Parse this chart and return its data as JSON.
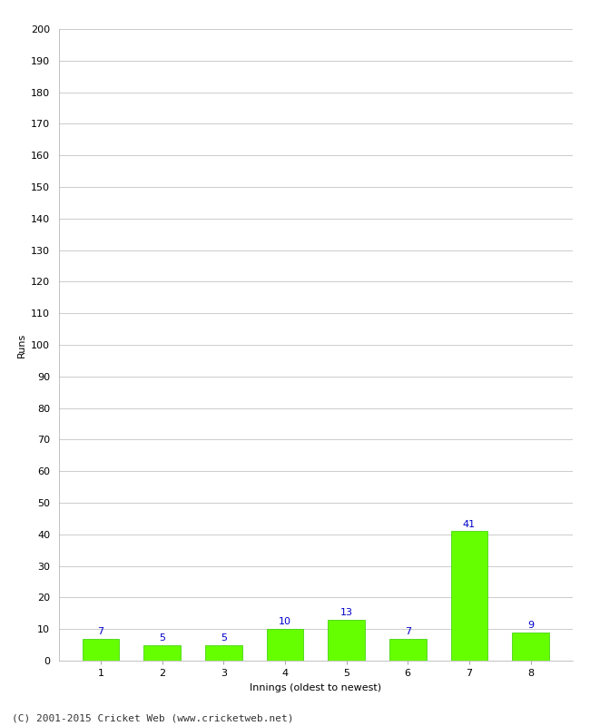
{
  "categories": [
    "1",
    "2",
    "3",
    "4",
    "5",
    "6",
    "7",
    "8"
  ],
  "values": [
    7,
    5,
    5,
    10,
    13,
    7,
    41,
    9
  ],
  "bar_color": "#66ff00",
  "bar_edge_color": "#33cc00",
  "label_color": "#0000cc",
  "xlabel": "Innings (oldest to newest)",
  "ylabel": "Runs",
  "ylim": [
    0,
    200
  ],
  "yticks": [
    0,
    10,
    20,
    30,
    40,
    50,
    60,
    70,
    80,
    90,
    100,
    110,
    120,
    130,
    140,
    150,
    160,
    170,
    180,
    190,
    200
  ],
  "grid_color": "#cccccc",
  "background_color": "#ffffff",
  "footer_text": "(C) 2001-2015 Cricket Web (www.cricketweb.net)",
  "label_fontsize": 8,
  "axis_label_fontsize": 8,
  "tick_fontsize": 8,
  "footer_fontsize": 8
}
